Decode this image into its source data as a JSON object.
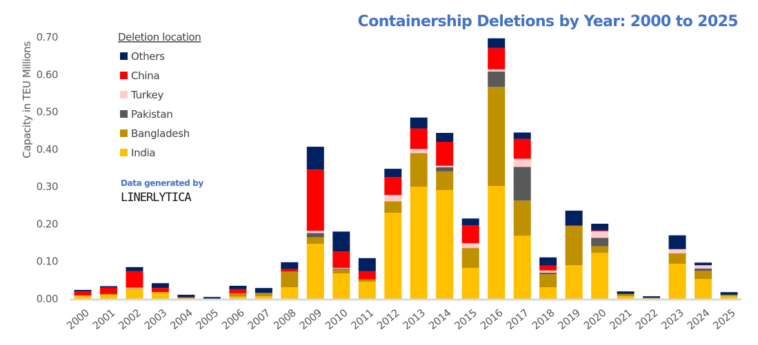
{
  "chart_data": {
    "type": "bar",
    "stacked": true,
    "title": "Containership Deletions by Year: 2000 to 2025",
    "xlabel": "",
    "ylabel": "Capacity in TEU Millions",
    "ylim": [
      0,
      0.7
    ],
    "yticks": [
      "0.00",
      "0.10",
      "0.20",
      "0.30",
      "0.40",
      "0.50",
      "0.60",
      "0.70"
    ],
    "grid": false,
    "legend": {
      "title": "Deletion location",
      "placement": "top-left",
      "order": [
        "Others",
        "China",
        "Turkey",
        "Pakistan",
        "Bangladesh",
        "India"
      ]
    },
    "credit": {
      "line1": "Data generated by",
      "line2": "LINERLYTICA"
    },
    "categories": [
      "2000",
      "2001",
      "2002",
      "2003",
      "2004",
      "2005",
      "2006",
      "2007",
      "2008",
      "2009",
      "2010",
      "2011",
      "2012",
      "2013",
      "2014",
      "2015",
      "2016",
      "2017",
      "2018",
      "2019",
      "2020",
      "2021",
      "2022",
      "2023",
      "2024",
      "2025"
    ],
    "series": [
      {
        "name": "India",
        "color": "#ffc000",
        "values": [
          0.009,
          0.011,
          0.026,
          0.018,
          0.002,
          0.0,
          0.006,
          0.007,
          0.031,
          0.147,
          0.068,
          0.046,
          0.23,
          0.3,
          0.291,
          0.083,
          0.302,
          0.169,
          0.031,
          0.09,
          0.123,
          0.007,
          0.001,
          0.094,
          0.053,
          0.007
        ]
      },
      {
        "name": "Bangladesh",
        "color": "#bf9000",
        "values": [
          0.0,
          0.002,
          0.002,
          0.0,
          0.001,
          0.0,
          0.009,
          0.009,
          0.042,
          0.018,
          0.011,
          0.006,
          0.031,
          0.09,
          0.05,
          0.053,
          0.265,
          0.094,
          0.035,
          0.105,
          0.018,
          0.006,
          0.002,
          0.028,
          0.022,
          0.004
        ]
      },
      {
        "name": "Pakistan",
        "color": "#595959",
        "values": [
          0.0,
          0.0,
          0.0,
          0.0,
          0.0,
          0.0,
          0.0,
          0.0,
          0.0,
          0.011,
          0.002,
          0.0,
          0.0,
          0.0,
          0.011,
          0.0,
          0.041,
          0.09,
          0.004,
          0.0,
          0.022,
          0.0,
          0.0,
          0.0,
          0.006,
          0.0
        ]
      },
      {
        "name": "Turkey",
        "color": "#ffcccc",
        "values": [
          0.0,
          0.0,
          0.002,
          0.0,
          0.0,
          0.0,
          0.0,
          0.0,
          0.0,
          0.006,
          0.002,
          0.0,
          0.017,
          0.011,
          0.004,
          0.013,
          0.006,
          0.022,
          0.006,
          0.0,
          0.018,
          0.0,
          0.0,
          0.011,
          0.009,
          0.0
        ]
      },
      {
        "name": "China",
        "color": "#ff0000",
        "values": [
          0.011,
          0.017,
          0.044,
          0.011,
          0.002,
          0.0,
          0.011,
          0.0,
          0.007,
          0.164,
          0.044,
          0.022,
          0.048,
          0.055,
          0.064,
          0.048,
          0.057,
          0.053,
          0.013,
          0.002,
          0.002,
          0.0,
          0.0,
          0.0,
          0.0,
          0.0
        ]
      },
      {
        "name": "Others",
        "color": "#002060",
        "values": [
          0.004,
          0.004,
          0.011,
          0.013,
          0.006,
          0.005,
          0.009,
          0.013,
          0.018,
          0.061,
          0.053,
          0.035,
          0.022,
          0.029,
          0.024,
          0.018,
          0.026,
          0.017,
          0.022,
          0.039,
          0.018,
          0.007,
          0.004,
          0.037,
          0.007,
          0.007
        ]
      }
    ]
  }
}
